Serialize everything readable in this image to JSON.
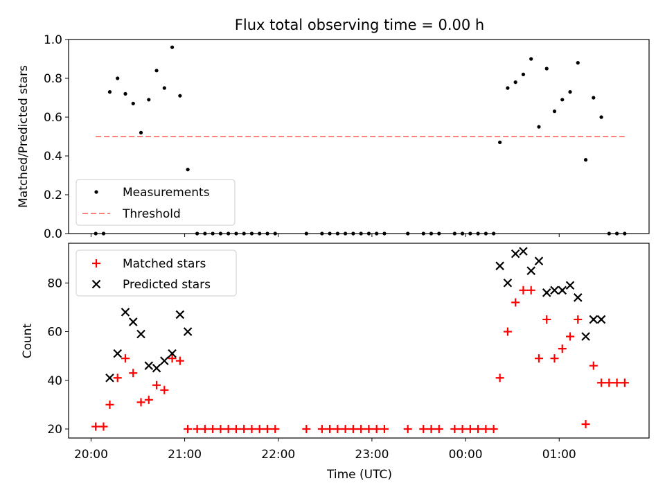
{
  "chart_data": [
    {
      "type": "scatter",
      "title": "Flux total observing time = 0.00 h",
      "xlabel": "",
      "ylabel": "Matched/Predicted stars",
      "ylim": [
        0,
        1.0
      ],
      "yticks": [
        "0.0",
        "0.2",
        "0.4",
        "0.6",
        "0.8",
        "1.0"
      ],
      "grid": false,
      "legend_position": "lower-left",
      "series": [
        {
          "name": "Measurements",
          "style": "dot",
          "color": "#000000",
          "points": [
            [
              "20:03",
              0
            ],
            [
              "20:08",
              0
            ],
            [
              "20:12",
              0.73
            ],
            [
              "20:17",
              0.8
            ],
            [
              "20:22",
              0.72
            ],
            [
              "20:27",
              0.67
            ],
            [
              "20:32",
              0.52
            ],
            [
              "20:37",
              0.69
            ],
            [
              "20:42",
              0.84
            ],
            [
              "20:47",
              0.75
            ],
            [
              "20:52",
              0.96
            ],
            [
              "20:57",
              0.71
            ],
            [
              "21:02",
              0.33
            ],
            [
              "21:08",
              0
            ],
            [
              "21:13",
              0
            ],
            [
              "21:18",
              0
            ],
            [
              "21:23",
              0
            ],
            [
              "21:28",
              0
            ],
            [
              "21:33",
              0
            ],
            [
              "21:38",
              0
            ],
            [
              "21:43",
              0
            ],
            [
              "21:48",
              0
            ],
            [
              "21:53",
              0
            ],
            [
              "21:58",
              0
            ],
            [
              "22:18",
              0
            ],
            [
              "22:28",
              0
            ],
            [
              "22:33",
              0
            ],
            [
              "22:38",
              0
            ],
            [
              "22:43",
              0
            ],
            [
              "22:48",
              0
            ],
            [
              "22:53",
              0
            ],
            [
              "22:58",
              0
            ],
            [
              "23:03",
              0
            ],
            [
              "23:08",
              0
            ],
            [
              "23:23",
              0
            ],
            [
              "23:33",
              0
            ],
            [
              "23:38",
              0
            ],
            [
              "23:43",
              0
            ],
            [
              "23:53",
              0
            ],
            [
              "23:58",
              0
            ],
            [
              "00:03",
              0
            ],
            [
              "00:08",
              0
            ],
            [
              "00:13",
              0
            ],
            [
              "00:18",
              0
            ],
            [
              "00:22",
              0.47
            ],
            [
              "00:27",
              0.75
            ],
            [
              "00:32",
              0.78
            ],
            [
              "00:37",
              0.82
            ],
            [
              "00:42",
              0.9
            ],
            [
              "00:47",
              0.55
            ],
            [
              "00:52",
              0.85
            ],
            [
              "00:57",
              0.63
            ],
            [
              "01:02",
              0.69
            ],
            [
              "01:07",
              0.73
            ],
            [
              "01:12",
              0.88
            ],
            [
              "01:17",
              0.38
            ],
            [
              "01:22",
              0.7
            ],
            [
              "01:27",
              0.6
            ],
            [
              "01:32",
              0
            ],
            [
              "01:37",
              0
            ],
            [
              "01:42",
              0
            ]
          ]
        },
        {
          "name": "Threshold",
          "style": "dashed-line",
          "color": "#ff7f7f",
          "points": [
            [
              "20:03",
              0.5
            ],
            [
              "01:42",
              0.5
            ]
          ]
        }
      ]
    },
    {
      "type": "scatter",
      "title": "",
      "xlabel": "Time (UTC)",
      "ylabel": "Count",
      "ylim": [
        16.3,
        96.3
      ],
      "yticks": [
        "20",
        "40",
        "60",
        "80"
      ],
      "xticks": [
        "20:00",
        "21:00",
        "22:00",
        "23:00",
        "00:00",
        "01:00"
      ],
      "grid": false,
      "legend_position": "upper-left",
      "series": [
        {
          "name": "Matched stars",
          "style": "plus",
          "color": "#ff0000",
          "points": [
            [
              "20:03",
              21
            ],
            [
              "20:08",
              21
            ],
            [
              "20:12",
              30
            ],
            [
              "20:17",
              41
            ],
            [
              "20:22",
              49
            ],
            [
              "20:27",
              43
            ],
            [
              "20:32",
              31
            ],
            [
              "20:37",
              32
            ],
            [
              "20:42",
              38
            ],
            [
              "20:47",
              36
            ],
            [
              "20:52",
              49
            ],
            [
              "20:57",
              48
            ],
            [
              "21:02",
              20
            ],
            [
              "21:08",
              20
            ],
            [
              "21:13",
              20
            ],
            [
              "21:18",
              20
            ],
            [
              "21:23",
              20
            ],
            [
              "21:28",
              20
            ],
            [
              "21:33",
              20
            ],
            [
              "21:38",
              20
            ],
            [
              "21:43",
              20
            ],
            [
              "21:48",
              20
            ],
            [
              "21:53",
              20
            ],
            [
              "21:58",
              20
            ],
            [
              "22:18",
              20
            ],
            [
              "22:28",
              20
            ],
            [
              "22:33",
              20
            ],
            [
              "22:38",
              20
            ],
            [
              "22:43",
              20
            ],
            [
              "22:48",
              20
            ],
            [
              "22:53",
              20
            ],
            [
              "22:58",
              20
            ],
            [
              "23:03",
              20
            ],
            [
              "23:08",
              20
            ],
            [
              "23:23",
              20
            ],
            [
              "23:33",
              20
            ],
            [
              "23:38",
              20
            ],
            [
              "23:43",
              20
            ],
            [
              "23:53",
              20
            ],
            [
              "23:58",
              20
            ],
            [
              "00:03",
              20
            ],
            [
              "00:08",
              20
            ],
            [
              "00:13",
              20
            ],
            [
              "00:18",
              20
            ],
            [
              "00:22",
              41
            ],
            [
              "00:27",
              60
            ],
            [
              "00:32",
              72
            ],
            [
              "00:37",
              77
            ],
            [
              "00:42",
              77
            ],
            [
              "00:47",
              49
            ],
            [
              "00:52",
              65
            ],
            [
              "00:57",
              49
            ],
            [
              "01:02",
              53
            ],
            [
              "01:07",
              58
            ],
            [
              "01:12",
              65
            ],
            [
              "01:17",
              22
            ],
            [
              "01:22",
              46
            ],
            [
              "01:27",
              39
            ],
            [
              "01:32",
              39
            ],
            [
              "01:37",
              39
            ],
            [
              "01:42",
              39
            ]
          ]
        },
        {
          "name": "Predicted stars",
          "style": "x",
          "color": "#000000",
          "points": [
            [
              "20:12",
              41
            ],
            [
              "20:17",
              51
            ],
            [
              "20:22",
              68
            ],
            [
              "20:27",
              64
            ],
            [
              "20:32",
              59
            ],
            [
              "20:37",
              46
            ],
            [
              "20:42",
              45
            ],
            [
              "20:47",
              48
            ],
            [
              "20:52",
              51
            ],
            [
              "20:57",
              67
            ],
            [
              "21:02",
              60
            ],
            [
              "00:22",
              87
            ],
            [
              "00:27",
              80
            ],
            [
              "00:32",
              92
            ],
            [
              "00:37",
              93
            ],
            [
              "00:42",
              85
            ],
            [
              "00:47",
              89
            ],
            [
              "00:52",
              76
            ],
            [
              "00:57",
              77
            ],
            [
              "01:02",
              77
            ],
            [
              "01:07",
              79
            ],
            [
              "01:12",
              74
            ],
            [
              "01:17",
              58
            ],
            [
              "01:22",
              65
            ],
            [
              "01:27",
              65
            ]
          ]
        }
      ]
    }
  ]
}
